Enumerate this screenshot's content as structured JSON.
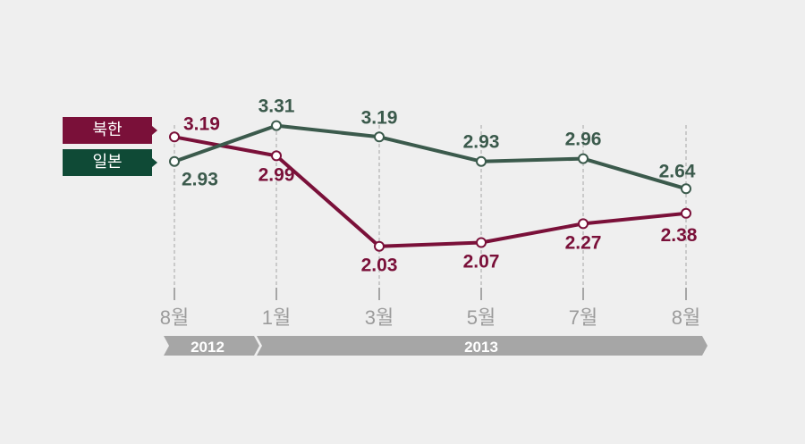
{
  "colors": {
    "north_korea": "#7a1039",
    "japan": "#3b5a4c",
    "background": "#efefef",
    "grid": "#a6a6a6",
    "axis_text": "#9b9b9b",
    "timeline": "#a6a6a6"
  },
  "legend": [
    {
      "label": "북한",
      "color": "#7a1039"
    },
    {
      "label": "일본",
      "color": "#0f4a36"
    }
  ],
  "timeline": {
    "year_2012": "2012",
    "year_2013": "2013"
  },
  "chart_data": {
    "type": "line",
    "categories": [
      "8월",
      "1월",
      "3월",
      "5월",
      "7월",
      "8월"
    ],
    "ylim": [
      1.8,
      3.6
    ],
    "grid": "vertical-dashed",
    "legend_position": "left",
    "series": [
      {
        "name": "북한",
        "color": "#7a1039",
        "values": [
          3.19,
          2.99,
          2.03,
          2.07,
          2.27,
          2.38
        ]
      },
      {
        "name": "일본",
        "color": "#3b5a4c",
        "values": [
          2.93,
          3.31,
          3.19,
          2.93,
          2.96,
          2.64
        ]
      }
    ],
    "data_labels": {
      "북한": [
        "3.19",
        "2.99",
        "2.03",
        "2.07",
        "2.27",
        "2.38"
      ],
      "일본": [
        "2.93",
        "3.31",
        "3.19",
        "2.93",
        "2.96",
        "2.64"
      ]
    }
  }
}
